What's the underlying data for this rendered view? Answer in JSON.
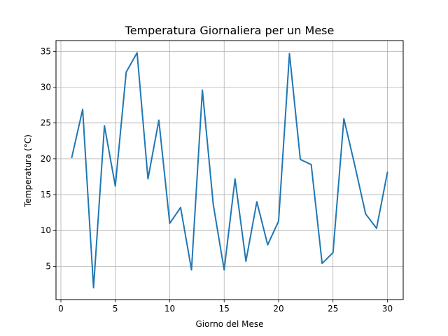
{
  "chart_data": {
    "type": "line",
    "title": "Temperatura Giornaliera per un Mese",
    "xlabel": "Giorno del Mese",
    "ylabel": "Temperatura (°C)",
    "xlim": [
      -0.45,
      31.45
    ],
    "ylim": [
      0.35,
      36.5
    ],
    "xticks": [
      0,
      5,
      10,
      15,
      20,
      25,
      30
    ],
    "yticks": [
      5,
      10,
      15,
      20,
      25,
      30,
      35
    ],
    "grid": true,
    "series": [
      {
        "color": "#1f77b4",
        "x": [
          1,
          2,
          3,
          4,
          5,
          6,
          7,
          8,
          9,
          10,
          11,
          12,
          13,
          14,
          15,
          16,
          17,
          18,
          19,
          20,
          21,
          22,
          23,
          24,
          25,
          26,
          27,
          28,
          29,
          30
        ],
        "values": [
          20.2,
          26.9,
          2.0,
          24.6,
          16.2,
          32.1,
          34.8,
          17.2,
          25.4,
          11.0,
          13.2,
          4.5,
          29.6,
          13.6,
          4.5,
          17.2,
          5.7,
          14.0,
          8.0,
          11.3,
          34.7,
          19.9,
          19.2,
          5.4,
          6.9,
          25.6,
          19.1,
          12.3,
          10.3,
          18.1
        ]
      }
    ]
  }
}
